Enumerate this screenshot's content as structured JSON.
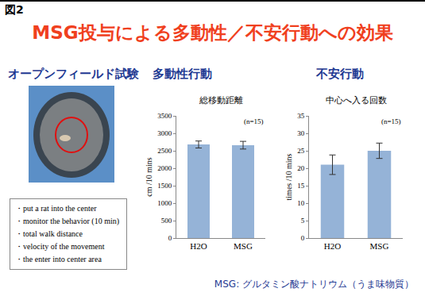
{
  "figure_label": "図2",
  "title": "MSG投与による多動性／不安行動への効果",
  "section_labels": [
    "オープンフィールド試験",
    "多動性行動",
    "不安行動"
  ],
  "bullets": [
    "・put a rat into the center",
    "・monitor the  behavior (10 min)",
    "・total walk distance",
    "・velocity of the movement",
    "・the enter into center area"
  ],
  "footnote": "MSG: グルタミン酸ナトリウム（うま味物質）",
  "chart_data": [
    {
      "type": "bar",
      "title": "総移動距離",
      "categories": [
        "H2O",
        "MSG"
      ],
      "values": [
        2680,
        2660
      ],
      "errors": [
        100,
        110
      ],
      "color": "#95b3d7",
      "ylabel": "cm /10 mins",
      "ylim": [
        0,
        3500
      ],
      "yticks": [
        0,
        500,
        1000,
        1500,
        2000,
        2500,
        3000,
        3500
      ],
      "grid": false,
      "annotations": [
        "(n=15)"
      ]
    },
    {
      "type": "bar",
      "title": "中心へ入る回数",
      "categories": [
        "H2O",
        "MSG"
      ],
      "values": [
        21,
        25
      ],
      "errors": [
        2.8,
        2.2
      ],
      "color": "#95b3d7",
      "ylabel": "times /10 mins",
      "ylim": [
        0,
        35
      ],
      "yticks": [
        0,
        5,
        10,
        15,
        20,
        25,
        30,
        35
      ],
      "grid": false,
      "annotations": [
        "(n=15)"
      ]
    }
  ]
}
